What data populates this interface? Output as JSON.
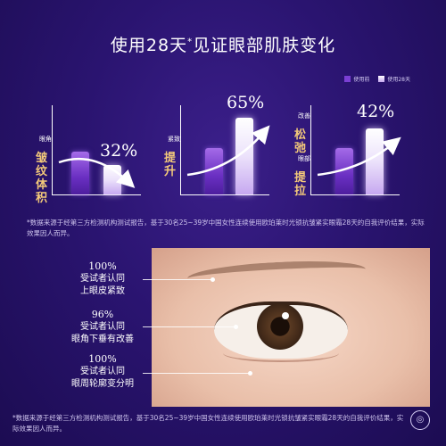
{
  "title": {
    "main": "使用28天",
    "sup": "*",
    "rest": "见证眼部肌肤变化"
  },
  "legend": {
    "before": "使用前",
    "after": "使用28天"
  },
  "colors": {
    "before": "#7b3fd4",
    "after": "#efe6ff",
    "accent": "#f3c97a"
  },
  "charts": [
    {
      "small_label": "眼角",
      "big_label": "皱纹体积",
      "value_label": "32%",
      "before_level": 0.48,
      "after_level": 0.33,
      "trend": "down"
    },
    {
      "small_label": "紧致",
      "big_label": "提升",
      "value_label": "65%",
      "before_level": 0.52,
      "after_level": 0.86,
      "trend": "up"
    },
    {
      "small_label": "改善",
      "big_label": "松弛",
      "small_label2": "眼部",
      "big_label2": "提拉",
      "value_label": "42%",
      "before_level": 0.52,
      "after_level": 0.74,
      "trend": "up"
    }
  ],
  "note1": "*数据来源于经第三方检测机构测试报告，基于30名25~39岁中国女性连续使用欧珀莱时光锁抗皱紧实眼霜28天的自我评价结果，实际效果因人而异。",
  "claims": [
    {
      "value": "100%",
      "line1": "受试者认同",
      "line2": "上眼皮紧致"
    },
    {
      "value": "96%",
      "line1": "受试者认同",
      "line2": "眼角下垂有改善"
    },
    {
      "value": "100%",
      "line1": "受试者认同",
      "line2": "眼周轮廓变分明"
    }
  ],
  "note2": "*数据来源于经第三方检测机构测试报告，基于30名25~39岁中国女性连续使用欧珀莱时光锁抗皱紧实眼霜28天的自我评价结果，实际效果因人而异。"
}
